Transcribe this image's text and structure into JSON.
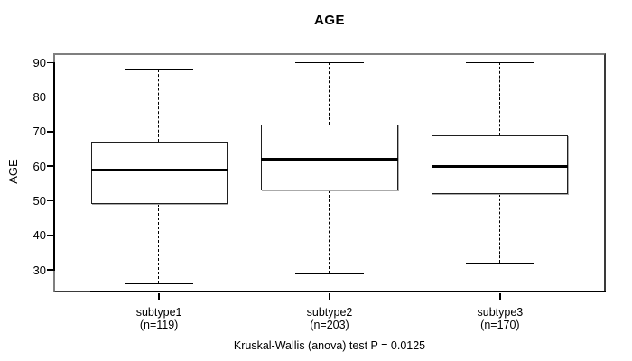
{
  "window": {
    "background": "#ffffff"
  },
  "colors": {
    "frame_gray": "#7f7f7f",
    "axis_black": "#000000",
    "box_fill": "#ffffff"
  },
  "chart_data": {
    "type": "boxplot",
    "title": "AGE",
    "ylabel": "AGE",
    "xlabel": "",
    "ylim": [
      23.5,
      92.7
    ],
    "yticks": [
      30,
      40,
      50,
      60,
      70,
      80,
      90
    ],
    "grid": false,
    "legend": "none",
    "categories": [
      "subtype1",
      "subtype2",
      "subtype3"
    ],
    "groups": [
      {
        "label": "subtype1",
        "sublabel": "(n=119)",
        "n": 119,
        "position": 1,
        "whisker_low": 26,
        "q1": 49,
        "median": 59,
        "q3": 67,
        "whisker_high": 88
      },
      {
        "label": "subtype2",
        "sublabel": "(n=203)",
        "n": 203,
        "position": 2,
        "whisker_low": 29,
        "q1": 53,
        "median": 62,
        "q3": 72,
        "whisker_high": 90
      },
      {
        "label": "subtype3",
        "sublabel": "(n=170)",
        "n": 170,
        "position": 3,
        "whisker_low": 32,
        "q1": 52,
        "median": 60,
        "q3": 69,
        "whisker_high": 90
      }
    ],
    "annotation": "Kruskal-Wallis (anova) test P = 0.0125"
  }
}
